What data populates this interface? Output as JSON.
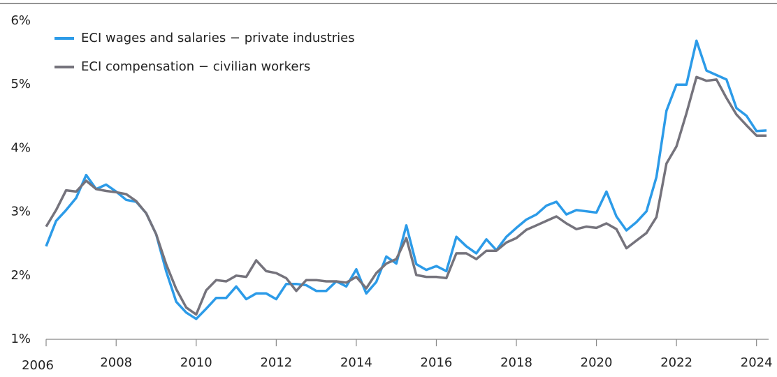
{
  "chart_data": {
    "type": "line",
    "x": [
      2006.25,
      2006.5,
      2006.75,
      2007,
      2007.25,
      2007.5,
      2007.75,
      2008,
      2008.25,
      2008.5,
      2008.75,
      2009,
      2009.25,
      2009.5,
      2009.75,
      2010,
      2010.25,
      2010.5,
      2010.75,
      2011,
      2011.25,
      2011.5,
      2011.75,
      2012,
      2012.25,
      2012.5,
      2012.75,
      2013,
      2013.25,
      2013.5,
      2013.75,
      2014,
      2014.25,
      2014.5,
      2014.75,
      2015,
      2015.25,
      2015.5,
      2015.75,
      2016,
      2016.25,
      2016.5,
      2016.75,
      2017,
      2017.25,
      2017.5,
      2017.75,
      2018,
      2018.25,
      2018.5,
      2018.75,
      2019,
      2019.25,
      2019.5,
      2019.75,
      2020,
      2020.25,
      2020.5,
      2020.75,
      2021,
      2021.25,
      2021.5,
      2021.75,
      2022,
      2022.25,
      2022.5,
      2022.75,
      2023,
      2023.25,
      2023.5,
      2023.75,
      2024,
      2024.25
    ],
    "series": [
      {
        "name": "ECI wages and salaries − private industries",
        "color": "#2c9be8",
        "values": [
          2.46,
          2.86,
          3.03,
          3.22,
          3.58,
          3.36,
          3.43,
          3.32,
          3.19,
          3.16,
          2.98,
          2.65,
          2.07,
          1.59,
          1.42,
          1.32,
          1.48,
          1.65,
          1.65,
          1.83,
          1.63,
          1.72,
          1.72,
          1.63,
          1.87,
          1.87,
          1.85,
          1.76,
          1.76,
          1.91,
          1.83,
          2.1,
          1.72,
          1.9,
          2.3,
          2.19,
          2.79,
          2.18,
          2.09,
          2.15,
          2.07,
          2.61,
          2.46,
          2.35,
          2.57,
          2.4,
          2.61,
          2.75,
          2.88,
          2.96,
          3.1,
          3.16,
          2.96,
          3.03,
          3.01,
          2.99,
          3.32,
          2.93,
          2.71,
          2.84,
          3.01,
          3.55,
          4.59,
          5.0,
          5.0,
          5.69,
          5.22,
          5.15,
          5.08,
          4.63,
          4.51,
          4.27,
          4.28
        ]
      },
      {
        "name": "ECI compensation − civilian workers",
        "color": "#75737c",
        "values": [
          2.77,
          3.03,
          3.34,
          3.32,
          3.49,
          3.36,
          3.33,
          3.31,
          3.28,
          3.17,
          2.98,
          2.65,
          2.18,
          1.79,
          1.5,
          1.39,
          1.77,
          1.93,
          1.91,
          2.0,
          1.98,
          2.24,
          2.07,
          2.04,
          1.96,
          1.76,
          1.93,
          1.93,
          1.91,
          1.91,
          1.89,
          1.98,
          1.8,
          2.04,
          2.19,
          2.26,
          2.59,
          2.01,
          1.98,
          1.98,
          1.96,
          2.35,
          2.35,
          2.26,
          2.39,
          2.39,
          2.52,
          2.59,
          2.72,
          2.79,
          2.86,
          2.93,
          2.82,
          2.73,
          2.77,
          2.75,
          2.82,
          2.73,
          2.43,
          2.55,
          2.67,
          2.92,
          3.76,
          4.03,
          4.55,
          5.12,
          5.06,
          5.08,
          4.79,
          4.53,
          4.36,
          4.2,
          4.2
        ]
      }
    ],
    "xlim": [
      2006.25,
      2024.25
    ],
    "xticks": [
      {
        "value": 2006.25,
        "label": "2006"
      },
      2008,
      2010,
      2012,
      2014,
      2016,
      2018,
      2020,
      2022,
      2024
    ],
    "ylim": [
      1,
      6
    ],
    "yticks": [
      {
        "value": 1,
        "label": "1%"
      },
      {
        "value": 2,
        "label": "2%"
      },
      {
        "value": 3,
        "label": "3%"
      },
      {
        "value": 4,
        "label": "4%"
      },
      {
        "value": 5,
        "label": "5%"
      },
      {
        "value": 6,
        "label": "6%"
      }
    ],
    "grid": false,
    "legend": "upper left"
  }
}
